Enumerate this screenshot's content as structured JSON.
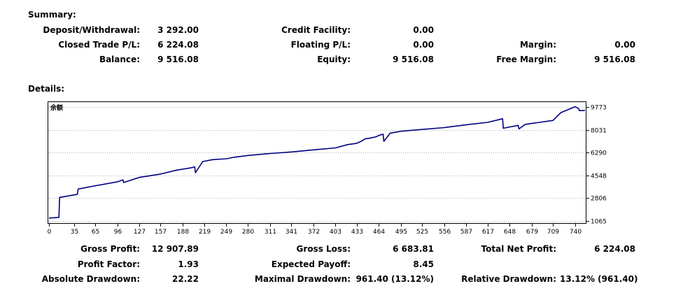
{
  "summary": {
    "heading": "Summary:",
    "deposit_label": "Deposit/Withdrawal:",
    "deposit_value": "3 292.00",
    "closed_pl_label": "Closed Trade P/L:",
    "closed_pl_value": "6 224.08",
    "balance_label": "Balance:",
    "balance_value": "9 516.08",
    "credit_label": "Credit Facility:",
    "credit_value": "0.00",
    "floating_label": "Floating P/L:",
    "floating_value": "0.00",
    "equity_label": "Equity:",
    "equity_value": "9 516.08",
    "margin_label": "Margin:",
    "margin_value": "0.00",
    "free_margin_label": "Free Margin:",
    "free_margin_value": "9 516.08"
  },
  "details": {
    "heading": "Details:",
    "gross_profit_label": "Gross Profit:",
    "gross_profit_value": "12 907.89",
    "gross_loss_label": "Gross Loss:",
    "gross_loss_value": "6 683.81",
    "total_net_label": "Total Net Profit:",
    "total_net_value": "6 224.08",
    "profit_factor_label": "Profit Factor:",
    "profit_factor_value": "1.93",
    "expected_payoff_label": "Expected Payoff:",
    "expected_payoff_value": "8.45",
    "abs_dd_label": "Absolute Drawdown:",
    "abs_dd_value": "22.22",
    "max_dd_label": "Maximal Drawdown:",
    "max_dd_value": "961.40 (13.12%)",
    "rel_dd_label": "Relative Drawdown:",
    "rel_dd_value": "13.12% (961.40)"
  },
  "chart_data": {
    "type": "line",
    "title": "余额",
    "line_color": "#000080",
    "y_ticks": [
      1065,
      2806,
      4548,
      6290,
      8031,
      9773
    ],
    "x_ticks": [
      0,
      35,
      65,
      96,
      127,
      157,
      188,
      219,
      249,
      280,
      311,
      341,
      372,
      403,
      433,
      464,
      495,
      525,
      556,
      587,
      617,
      648,
      679,
      709,
      740
    ],
    "xlim": [
      0,
      754
    ],
    "ylim": [
      950,
      10100
    ],
    "series": [
      {
        "x": [
          0,
          14,
          15,
          35,
          40,
          41,
          60,
          96,
          104,
          105,
          127,
          157,
          180,
          200,
          205,
          206,
          215,
          216,
          230,
          250,
          260,
          280,
          311,
          341,
          372,
          403,
          420,
          433,
          440,
          445,
          450,
          460,
          464,
          470,
          471,
          480,
          495,
          525,
          556,
          587,
          617,
          638,
          639,
          648,
          660,
          661,
          670,
          690,
          709,
          720,
          740,
          745,
          746,
          754
        ],
        "y": [
          1280,
          1330,
          2860,
          3050,
          3100,
          3500,
          3700,
          4050,
          4200,
          4000,
          4390,
          4650,
          4950,
          5130,
          5200,
          4750,
          5500,
          5600,
          5750,
          5820,
          5930,
          6070,
          6220,
          6340,
          6500,
          6650,
          6900,
          7000,
          7180,
          7350,
          7380,
          7500,
          7600,
          7700,
          7150,
          7780,
          7920,
          8060,
          8200,
          8420,
          8600,
          8880,
          8150,
          8250,
          8370,
          8100,
          8450,
          8600,
          8750,
          9350,
          9800,
          9650,
          9500,
          9516
        ]
      }
    ]
  }
}
